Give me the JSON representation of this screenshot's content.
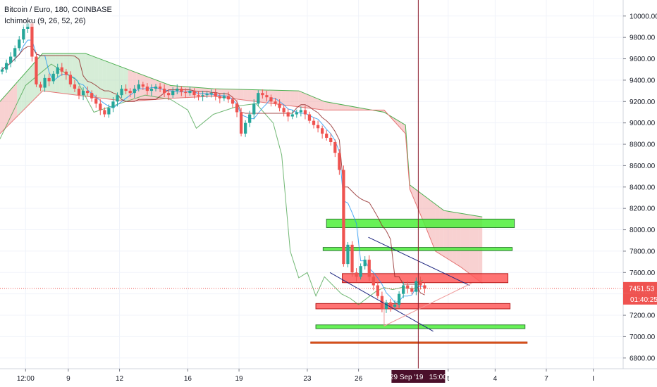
{
  "header": {
    "symbol_line": "Bitcoin / Euro, 180, COINBASE",
    "indicator_line": "Ichimoku (9, 26, 52, 26)"
  },
  "colors": {
    "up": "#26a69a",
    "down": "#ef5350",
    "cloud_bull": "#a5d6a7",
    "cloud_bear": "#ef9a9a",
    "lagging": "#43a047",
    "conversion": "#2196f3",
    "base": "#8d2121",
    "price_line": "#ef5350",
    "crosshair": "#8b1a2a",
    "zone_green": "#4cef3a",
    "zone_red": "#ff5a5a",
    "channel": "#1a237e",
    "triangle": "#ef9a9a"
  },
  "chart_data": {
    "type": "candlestick",
    "title": "Bitcoin / Euro, 180, COINBASE",
    "indicator": "Ichimoku (9, 26, 52, 26)",
    "xlabel": "",
    "ylabel": "",
    "ylim": [
      6700,
      10150
    ],
    "y_ticks": [
      "10000.00",
      "9800.00",
      "9600.00",
      "9400.00",
      "9200.00",
      "9000.00",
      "8800.00",
      "8600.00",
      "8400.00",
      "8200.00",
      "8000.00",
      "7800.00",
      "7600.00",
      "7400.00",
      "7200.00",
      "7000.00",
      "6800.00"
    ],
    "x_ticks": [
      {
        "label": "12:00",
        "bar": 6
      },
      {
        "label": "9",
        "bar": 16
      },
      {
        "label": "12",
        "bar": 28
      },
      {
        "label": "16",
        "bar": 44
      },
      {
        "label": "19",
        "bar": 56
      },
      {
        "label": "23",
        "bar": 72
      },
      {
        "label": "26",
        "bar": 84
      },
      {
        "label": "t",
        "bar": 105
      },
      {
        "label": "4",
        "bar": 116
      },
      {
        "label": "7",
        "bar": 128
      },
      {
        "label": "I",
        "bar": 139
      }
    ],
    "last_price": {
      "value": 7451.53,
      "label": "7451.53",
      "countdown": "01:40:25"
    },
    "crosshair": {
      "bar": 98,
      "label": "29 Sep '19   15:00"
    },
    "x_domain": [
      0,
      146
    ],
    "closes": [
      9500,
      9560,
      9620,
      9700,
      9780,
      9880,
      9930,
      9620,
      9360,
      9330,
      9420,
      9390,
      9460,
      9520,
      9480,
      9450,
      9360,
      9320,
      9260,
      9300,
      9280,
      9230,
      9180,
      9120,
      9080,
      9140,
      9200,
      9260,
      9320,
      9300,
      9280,
      9320,
      9360,
      9340,
      9300,
      9320,
      9340,
      9320,
      9280,
      9260,
      9300,
      9320,
      9290,
      9280,
      9300,
      9260,
      9250,
      9260,
      9270,
      9280,
      9250,
      9230,
      9250,
      9220,
      9180,
      9100,
      8900,
      9000,
      9080,
      9180,
      9280,
      9260,
      9240,
      9200,
      9180,
      9140,
      9100,
      9060,
      9080,
      9100,
      9120,
      9080,
      9020,
      8980,
      8950,
      8900,
      8860,
      8820,
      8720,
      8560,
      7680,
      7860,
      7600,
      7560,
      7660,
      7720,
      7560,
      7480,
      7380,
      7260,
      7320,
      7280,
      7300,
      7400,
      7480,
      7450,
      7420,
      7520,
      7480,
      7451.53
    ],
    "ichimoku": {
      "lagging_span": [
        [
          0,
          8850
        ],
        [
          6,
          9350
        ],
        [
          12,
          9550
        ],
        [
          18,
          9400
        ],
        [
          22,
          9100
        ],
        [
          28,
          9180
        ],
        [
          34,
          9260
        ],
        [
          40,
          9220
        ],
        [
          44,
          9120
        ],
        [
          46,
          8950
        ],
        [
          50,
          9080
        ],
        [
          56,
          9160
        ],
        [
          60,
          9180
        ],
        [
          64,
          9000
        ],
        [
          66,
          8700
        ],
        [
          68,
          7800
        ],
        [
          70,
          7550
        ],
        [
          72,
          7600
        ],
        [
          74,
          7380
        ],
        [
          76,
          7560
        ],
        [
          80,
          7400
        ],
        [
          82,
          7360
        ],
        [
          84,
          7300
        ],
        [
          88,
          7420
        ],
        [
          90,
          7460
        ],
        [
          92,
          7440
        ],
        [
          94,
          7460
        ],
        [
          97,
          7450
        ],
        [
          99,
          7530
        ]
      ],
      "cloud_top": [
        [
          0,
          9200
        ],
        [
          10,
          9650
        ],
        [
          20,
          9650
        ],
        [
          30,
          9500
        ],
        [
          40,
          9350
        ],
        [
          50,
          9320
        ],
        [
          60,
          9310
        ],
        [
          70,
          9300
        ],
        [
          76,
          9200
        ],
        [
          90,
          9100
        ],
        [
          95,
          8980
        ],
        [
          96,
          8420
        ],
        [
          100,
          8300
        ],
        [
          104,
          8180
        ],
        [
          113,
          8120
        ]
      ],
      "cloud_bottom": [
        [
          0,
          8900
        ],
        [
          10,
          9300
        ],
        [
          20,
          9250
        ],
        [
          30,
          9200
        ],
        [
          40,
          9230
        ],
        [
          50,
          9250
        ],
        [
          60,
          9200
        ],
        [
          70,
          9150
        ],
        [
          76,
          9120
        ],
        [
          90,
          9120
        ],
        [
          95,
          8900
        ],
        [
          96,
          8380
        ],
        [
          100,
          8000
        ],
        [
          102,
          7800
        ],
        [
          108,
          7650
        ],
        [
          113,
          7500
        ]
      ]
    },
    "zones": [
      {
        "kind": "green",
        "from_bar": 76.5,
        "to_bar": 120.5,
        "y_top": 8100,
        "y_bottom": 8020
      },
      {
        "kind": "green",
        "from_bar": 75.7,
        "to_bar": 120.0,
        "y_top": 7835,
        "y_bottom": 7805
      },
      {
        "kind": "red",
        "from_bar": 80.2,
        "to_bar": 119.0,
        "y_top": 7590,
        "y_bottom": 7505
      },
      {
        "kind": "red",
        "from_bar": 74.0,
        "to_bar": 119.5,
        "y_top": 7310,
        "y_bottom": 7260
      },
      {
        "kind": "green",
        "from_bar": 74.0,
        "to_bar": 123.0,
        "y_top": 7110,
        "y_bottom": 7075
      },
      {
        "kind": "base",
        "from_bar": 72.8,
        "to_bar": 123.5,
        "y_top": 6950,
        "y_bottom": 6940
      }
    ],
    "trendlines": [
      {
        "kind": "channel",
        "from": [
          86.3,
          7930
        ],
        "to": [
          110.0,
          7480
        ]
      },
      {
        "kind": "channel",
        "from": [
          77.3,
          7600
        ],
        "to": [
          101.5,
          7050
        ]
      },
      {
        "kind": "triangle",
        "from": [
          90.0,
          7100
        ],
        "to": [
          110.5,
          7500
        ]
      },
      {
        "kind": "triangle",
        "from": [
          90.0,
          7100
        ],
        "to": [
          90.0,
          7330
        ]
      }
    ]
  }
}
